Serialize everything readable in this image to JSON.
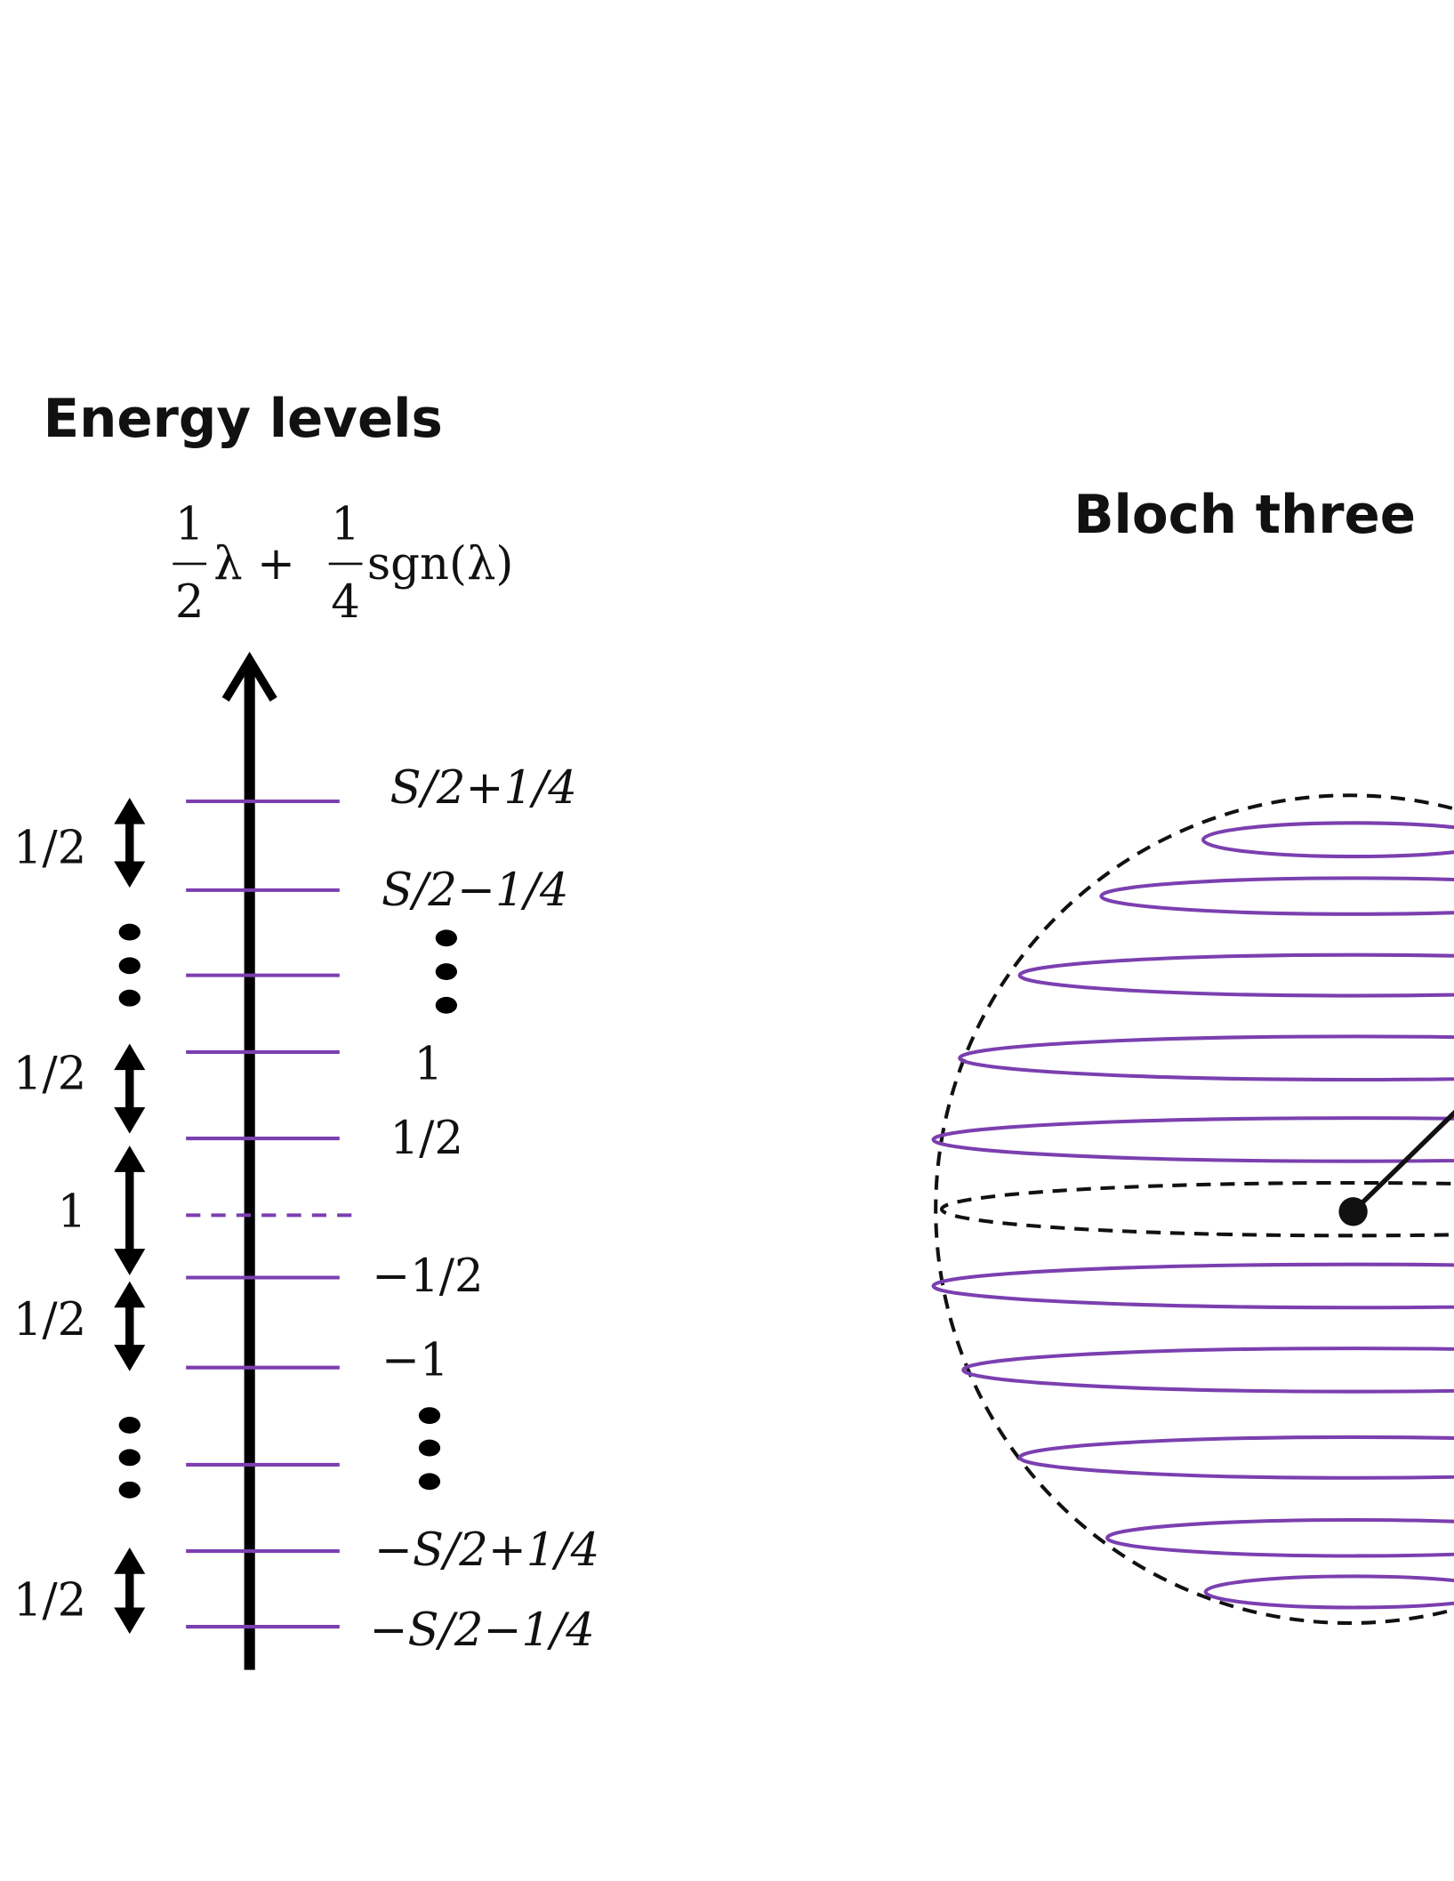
{
  "left_panel": {
    "title": "Energy levels",
    "axis_label": {
      "num1": "1",
      "den1": "2",
      "mid": "λ +",
      "num2": "1",
      "den2": "4",
      "tail": "sgn(λ)"
    },
    "level_labels": [
      "S/2+1/4",
      "S/2−1/4",
      "1",
      "1/2",
      "−1/2",
      "−1",
      "−S/2+1/4",
      "−S/2−1/4"
    ],
    "spacing_labels": [
      "1/2",
      "1/2",
      "1",
      "1/2",
      "1/2"
    ]
  },
  "right_panel": {
    "title": "Bloch three"
  }
}
